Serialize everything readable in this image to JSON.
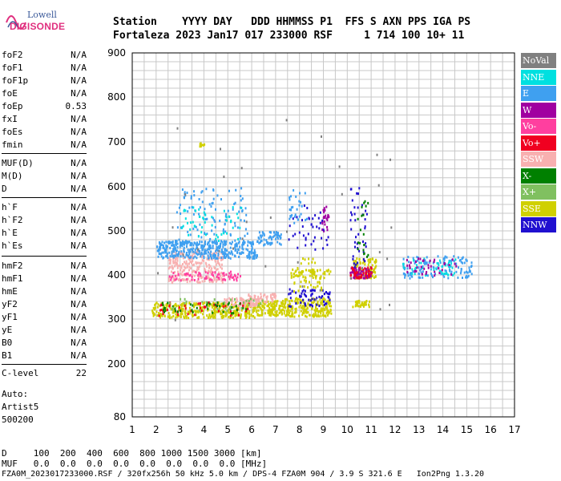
{
  "logo": {
    "top": "Lowell",
    "bottom": "DIGISONDE"
  },
  "header": {
    "row1": "Station    YYYY DAY   DDD HHMMSS P1  FFS S AXN PPS IGA PS",
    "row2": "Fortaleza 2023 Jan17 017 233000 RSF     1 714 100 10+ 11"
  },
  "parameters": [
    {
      "name": "foF2",
      "value": "N/A"
    },
    {
      "name": "foF1",
      "value": "N/A"
    },
    {
      "name": "foF1p",
      "value": "N/A"
    },
    {
      "name": "foE",
      "value": "N/A"
    },
    {
      "name": "foEp",
      "value": "0.53"
    },
    {
      "name": "fxI",
      "value": "N/A"
    },
    {
      "name": "foEs",
      "value": "N/A"
    },
    {
      "name": "fmin",
      "value": "N/A"
    },
    {
      "name": "MUF(D)",
      "value": "N/A"
    },
    {
      "name": "M(D)",
      "value": "N/A"
    },
    {
      "name": "D",
      "value": "N/A"
    },
    {
      "name": "h`F",
      "value": "N/A"
    },
    {
      "name": "h`F2",
      "value": "N/A"
    },
    {
      "name": "h`E",
      "value": "N/A"
    },
    {
      "name": "h`Es",
      "value": "N/A"
    },
    {
      "name": "hmF2",
      "value": "N/A"
    },
    {
      "name": "hmF1",
      "value": "N/A"
    },
    {
      "name": "hmE",
      "value": "N/A"
    },
    {
      "name": "yF2",
      "value": "N/A"
    },
    {
      "name": "yF1",
      "value": "N/A"
    },
    {
      "name": "yE",
      "value": "N/A"
    },
    {
      "name": "B0",
      "value": "N/A"
    },
    {
      "name": "B1",
      "value": "N/A"
    }
  ],
  "clevel": {
    "name": "C-level",
    "value": "22"
  },
  "auto": {
    "line1": "Auto:",
    "line2": "Artist5",
    "line3": "500200"
  },
  "footer": {
    "d_line": "D     100  200  400  600  800 1000 1500 3000 [km]",
    "muf_line": "MUF   0.0  0.0  0.0  0.0  0.0  0.0  0.0  0.0 [MHz]",
    "info_line": "FZA0M_2023017233000.RSF / 320fx256h 50 kHz 5.0 km / DPS-4 FZA0M 904 / 3.9 S 321.6 E   Ion2Png 1.3.20"
  },
  "legend": [
    {
      "label": "NoVal",
      "color": "#808080"
    },
    {
      "label": "NNE",
      "color": "#00e0e0"
    },
    {
      "label": "E",
      "color": "#3fa0f0"
    },
    {
      "label": "W",
      "color": "#a000a0"
    },
    {
      "label": "Vo-",
      "color": "#ff3f9f"
    },
    {
      "label": "Vo+",
      "color": "#f00020"
    },
    {
      "label": "SSW",
      "color": "#f8b0b0"
    },
    {
      "label": "X-",
      "color": "#008000"
    },
    {
      "label": "X+",
      "color": "#80c060"
    },
    {
      "label": "SSE",
      "color": "#d0d000"
    },
    {
      "label": "NNW",
      "color": "#2010d0"
    }
  ],
  "chart_data": {
    "type": "scatter",
    "xlim": [
      1,
      17
    ],
    "ylim": [
      80,
      900
    ],
    "x_ticks": [
      "1",
      "2",
      "3",
      "4",
      "5",
      "6",
      "7",
      "8",
      "9",
      "10",
      "11",
      "12",
      "13",
      "14",
      "15",
      "16",
      "17"
    ],
    "y_ticks": [
      "80",
      "200",
      "300",
      "400",
      "500",
      "600",
      "700",
      "800",
      "900"
    ],
    "y_tick_values": [
      80,
      200,
      300,
      400,
      500,
      600,
      700,
      800,
      900
    ],
    "grid": true,
    "clusters": [
      {
        "legend": "SSE",
        "x": [
          1.8,
          6.2
        ],
        "y": [
          305,
          340
        ],
        "n": 380
      },
      {
        "legend": "SSE",
        "x": [
          6.2,
          7.3
        ],
        "y": [
          310,
          345
        ],
        "n": 120
      },
      {
        "legend": "SSE",
        "x": [
          7.3,
          9.3
        ],
        "y": [
          308,
          350
        ],
        "n": 220
      },
      {
        "legend": "SSE",
        "x": [
          10.2,
          10.9
        ],
        "y": [
          330,
          345
        ],
        "n": 40
      },
      {
        "legend": "SSE",
        "x": [
          10.2,
          11.2
        ],
        "y": [
          395,
          440
        ],
        "n": 100
      },
      {
        "legend": "SSE",
        "x": [
          7.6,
          9.3
        ],
        "y": [
          395,
          415
        ],
        "n": 60
      },
      {
        "legend": "SSW",
        "x": [
          2.5,
          4.8
        ],
        "y": [
          385,
          455
        ],
        "n": 260
      },
      {
        "legend": "SSW",
        "x": [
          4.8,
          6.2
        ],
        "y": [
          330,
          350
        ],
        "n": 80
      },
      {
        "legend": "SSW",
        "x": [
          5.8,
          7.0
        ],
        "y": [
          340,
          360
        ],
        "n": 50
      },
      {
        "legend": "E",
        "x": [
          2.0,
          6.2
        ],
        "y": [
          440,
          480
        ],
        "n": 380
      },
      {
        "legend": "E",
        "x": [
          6.2,
          7.2
        ],
        "y": [
          470,
          500
        ],
        "n": 60
      },
      {
        "legend": "E",
        "x": [
          2.8,
          5.8
        ],
        "y": [
          470,
          600
        ],
        "n": 110
      },
      {
        "legend": "NNE",
        "x": [
          3.0,
          5.6
        ],
        "y": [
          480,
          560
        ],
        "n": 50
      },
      {
        "legend": "E",
        "x": [
          7.5,
          8.3
        ],
        "y": [
          520,
          595
        ],
        "n": 30
      },
      {
        "legend": "E",
        "x": [
          12.3,
          15.2
        ],
        "y": [
          395,
          445
        ],
        "n": 140
      },
      {
        "legend": "NNE",
        "x": [
          12.3,
          14.5
        ],
        "y": [
          400,
          440
        ],
        "n": 40
      },
      {
        "legend": "W",
        "x": [
          10.1,
          11.0
        ],
        "y": [
          395,
          420
        ],
        "n": 70
      },
      {
        "legend": "W",
        "x": [
          12.4,
          14.6
        ],
        "y": [
          400,
          440
        ],
        "n": 40
      },
      {
        "legend": "W",
        "x": [
          8.9,
          9.2
        ],
        "y": [
          500,
          560
        ],
        "n": 25
      },
      {
        "legend": "Vo-",
        "x": [
          2.5,
          5.5
        ],
        "y": [
          390,
          410
        ],
        "n": 70
      },
      {
        "legend": "Vo+",
        "x": [
          2.0,
          6.0
        ],
        "y": [
          310,
          340
        ],
        "n": 45
      },
      {
        "legend": "Vo+",
        "x": [
          10.1,
          11.0
        ],
        "y": [
          395,
          420
        ],
        "n": 40
      },
      {
        "legend": "NNW",
        "x": [
          7.5,
          9.3
        ],
        "y": [
          330,
          370
        ],
        "n": 60
      },
      {
        "legend": "NNW",
        "x": [
          7.5,
          9.2
        ],
        "y": [
          460,
          560
        ],
        "n": 40
      },
      {
        "legend": "NNW",
        "x": [
          10.1,
          10.8
        ],
        "y": [
          420,
          600
        ],
        "n": 40
      },
      {
        "legend": "X-",
        "x": [
          2.2,
          6.0
        ],
        "y": [
          315,
          340
        ],
        "n": 40
      },
      {
        "legend": "X-",
        "x": [
          10.3,
          10.9
        ],
        "y": [
          440,
          580
        ],
        "n": 20
      },
      {
        "legend": "X+",
        "x": [
          2.5,
          6.5
        ],
        "y": [
          320,
          350
        ],
        "n": 30
      },
      {
        "legend": "SSE",
        "x": [
          3.8,
          4.0
        ],
        "y": [
          692,
          700
        ],
        "n": 10
      },
      {
        "legend": "SSE",
        "x": [
          7.7,
          8.9
        ],
        "y": [
          365,
          440
        ],
        "n": 40
      },
      {
        "legend": "NoVal",
        "x": [
          2.0,
          12.0
        ],
        "y": [
          300,
          760
        ],
        "n": 35
      }
    ]
  }
}
